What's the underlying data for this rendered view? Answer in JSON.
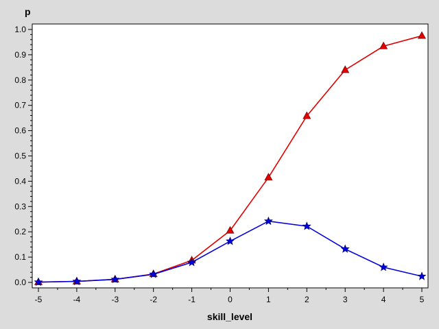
{
  "chart_data": {
    "type": "line",
    "xlabel": "skill_level",
    "ylabel": "p",
    "xlim": [
      -5,
      5
    ],
    "ylim": [
      0,
      1
    ],
    "x_ticks": [
      -5,
      -4,
      -3,
      -2,
      -1,
      0,
      1,
      2,
      3,
      4,
      5
    ],
    "y_ticks": [
      "0.0",
      "0.1",
      "0.2",
      "0.3",
      "0.4",
      "0.5",
      "0.6",
      "0.7",
      "0.8",
      "0.9",
      "1.0"
    ],
    "grid": false,
    "legend": "none",
    "series": [
      {
        "marker": "triangle",
        "color": "#e00000",
        "x": [
          -5,
          -4,
          -3,
          -2,
          -1,
          0,
          1,
          2,
          3,
          4,
          5
        ],
        "y": [
          0.001,
          0.004,
          0.012,
          0.033,
          0.087,
          0.205,
          0.415,
          0.658,
          0.84,
          0.934,
          0.975
        ]
      },
      {
        "marker": "star",
        "color": "#0000e0",
        "x": [
          -5,
          -4,
          -3,
          -2,
          -1,
          0,
          1,
          2,
          3,
          4,
          5
        ],
        "y": [
          0.001,
          0.004,
          0.012,
          0.032,
          0.079,
          0.163,
          0.242,
          0.222,
          0.132,
          0.06,
          0.024
        ]
      }
    ]
  }
}
